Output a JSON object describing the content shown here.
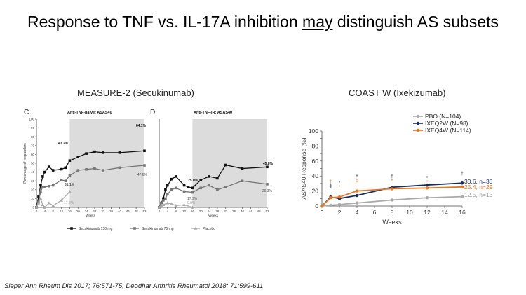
{
  "slide": {
    "title_pre": "Response to TNF vs. IL-17A inhibition ",
    "title_em": "may",
    "title_post": " distinguish AS subsets",
    "left_heading": "MEASURE-2 (Secukinumab)",
    "right_heading": "COAST W (Ixekizumab)",
    "citation": "Sieper Ann Rheum Dis 2017; 76:571-75, Deodhar Arthritis Rheumatol 2018; 71:599-611"
  },
  "chart_data": [
    {
      "type": "line",
      "panel": "C",
      "title": "Anti-TNF-naive: ASAS40",
      "ylabel": "Percentage of responders",
      "xlabel": "Weeks",
      "xlim": [
        0,
        52
      ],
      "ylim": [
        0,
        100
      ],
      "xticks": [
        0,
        4,
        8,
        12,
        16,
        20,
        24,
        28,
        32,
        36,
        40,
        44,
        48,
        52
      ],
      "yticks": [
        0,
        10,
        20,
        30,
        40,
        50,
        60,
        70,
        80,
        90,
        100
      ],
      "shaded_from": 16,
      "series": [
        {
          "name": "Secukinumab 150 mg",
          "color": "#111111",
          "marker": "square",
          "x": [
            0,
            1,
            2,
            3,
            4,
            6,
            8,
            12,
            14,
            16,
            20,
            24,
            28,
            32,
            40,
            52
          ],
          "y": [
            0,
            12,
            25,
            35,
            40,
            46,
            42,
            43.2,
            45,
            53,
            57,
            61,
            63,
            62,
            62,
            64.1
          ]
        },
        {
          "name": "Secukinumab 75 mg",
          "color": "#777777",
          "marker": "square",
          "x": [
            0,
            1,
            2,
            3,
            4,
            6,
            8,
            12,
            14,
            16,
            20,
            24,
            28,
            32,
            40,
            52
          ],
          "y": [
            0,
            6,
            18,
            23,
            23,
            24,
            25,
            31.1,
            30,
            36,
            42,
            43,
            44,
            42,
            45,
            47.6
          ]
        },
        {
          "name": "Placebo",
          "color": "#aaaaaa",
          "marker": "triangle",
          "x": [
            0,
            1,
            2,
            3,
            4,
            6,
            8,
            12,
            16
          ],
          "y": [
            0,
            5,
            10,
            3,
            0,
            5,
            2,
            8,
            17.8
          ]
        }
      ],
      "annotations": [
        "43.2%",
        "31.1%",
        "17.8%",
        "64.1%",
        "47.6%"
      ]
    },
    {
      "type": "line",
      "panel": "D",
      "title": "Anti-TNF-IR: ASAS40",
      "xlabel": "Weeks",
      "xlim": [
        0,
        52
      ],
      "ylim": [
        0,
        100
      ],
      "xticks": [
        0,
        4,
        8,
        12,
        16,
        20,
        24,
        28,
        32,
        36,
        40,
        44,
        48,
        52
      ],
      "shaded_from": 16,
      "series": [
        {
          "name": "Secukinumab 150 mg",
          "color": "#111111",
          "marker": "square",
          "x": [
            0,
            1,
            2,
            3,
            4,
            6,
            8,
            12,
            14,
            16,
            20,
            24,
            28,
            32,
            40,
            52
          ],
          "y": [
            0,
            5,
            10,
            20,
            25,
            32,
            35,
            25,
            23,
            22,
            31,
            35,
            33,
            48,
            44,
            45.8
          ]
        },
        {
          "name": "Secukinumab 75 mg",
          "color": "#777777",
          "marker": "square",
          "x": [
            0,
            1,
            2,
            3,
            4,
            6,
            8,
            12,
            16,
            20,
            24,
            28,
            32,
            40,
            52
          ],
          "y": [
            0,
            5,
            8,
            10,
            15,
            20,
            22,
            17.9,
            17,
            22,
            25,
            20,
            23,
            30,
            26.3
          ]
        },
        {
          "name": "Placebo",
          "color": "#aaaaaa",
          "marker": "triangle",
          "x": [
            0,
            1,
            2,
            4,
            6,
            8,
            12,
            16
          ],
          "y": [
            0,
            2,
            3,
            5,
            4,
            2,
            3,
            0
          ]
        }
      ],
      "annotations": [
        "25.0%",
        "17.9%",
        "0.0%",
        "45.8%",
        "26.3%"
      ]
    },
    {
      "type": "line",
      "title": "",
      "xlabel": "Weeks",
      "ylabel": "ASAS40 Response (%)",
      "xlim": [
        0,
        16
      ],
      "ylim": [
        0,
        100
      ],
      "xticks": [
        0,
        2,
        4,
        6,
        8,
        10,
        12,
        14,
        16
      ],
      "yticks": [
        0,
        10,
        20,
        30,
        40,
        50,
        60,
        70,
        80,
        90,
        100
      ],
      "legend": "top-left",
      "series": [
        {
          "name": "PBO (N=104)",
          "color": "#aaaaaa",
          "marker": "circle",
          "x": [
            0,
            1,
            2,
            4,
            8,
            12,
            16
          ],
          "y": [
            0,
            1,
            2,
            4,
            8,
            11,
            12.5
          ],
          "end_label": "12.5, n=13"
        },
        {
          "name": "IXEQ2W (N=98)",
          "color": "#1a2d5a",
          "marker": "circle",
          "x": [
            0,
            1,
            2,
            4,
            8,
            12,
            16
          ],
          "y": [
            0,
            12,
            10,
            14,
            25,
            28,
            30.6
          ],
          "end_label": "30.6, n=30"
        },
        {
          "name": "IXEQ4W (N=114)",
          "color": "#e87722",
          "marker": "circle",
          "x": [
            0,
            1,
            2,
            4,
            8,
            12,
            16
          ],
          "y": [
            0,
            11,
            12,
            20,
            23,
            24,
            25.4
          ],
          "end_label": "25.4, n=29"
        }
      ],
      "significance_marks": [
        {
          "x": 1,
          "marks": [
            "‡",
            "†"
          ]
        },
        {
          "x": 2,
          "marks": [
            "*",
            "*"
          ]
        },
        {
          "x": 4,
          "marks": [
            "*",
            "‡"
          ]
        },
        {
          "x": 8,
          "marks": [
            "†",
            "*"
          ]
        },
        {
          "x": 12,
          "marks": [
            "*",
            "*"
          ]
        },
        {
          "x": 16,
          "marks": [
            "†"
          ]
        }
      ]
    }
  ]
}
